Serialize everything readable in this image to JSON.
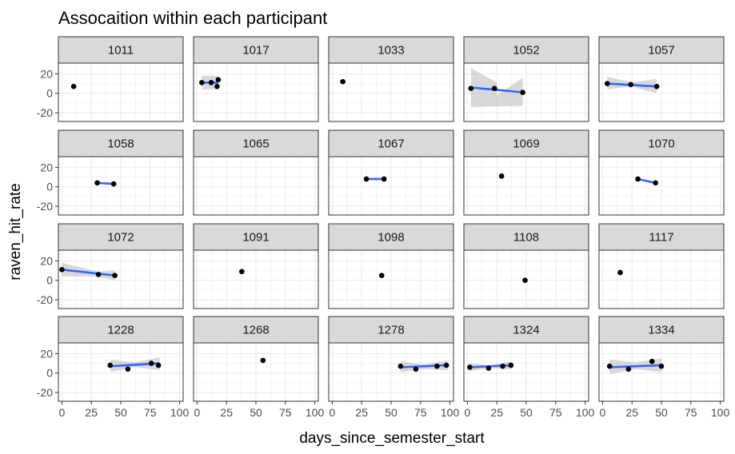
{
  "chart_data": {
    "type": "scatter",
    "title": "Assocaition within each participant",
    "xlabel": "days_since_semester_start",
    "ylabel": "raven_hit_rate",
    "xlim": [
      -3,
      103
    ],
    "ylim": [
      -29,
      31
    ],
    "x_ticks": [
      0,
      25,
      50,
      75,
      100
    ],
    "x_tick_labels": [
      "0",
      "25",
      "50",
      "75",
      "100"
    ],
    "y_ticks": [
      -20,
      0,
      20
    ],
    "y_tick_labels": [
      "-20",
      "0",
      "20"
    ],
    "grid": true,
    "facet_layout": "4 rows x 5 columns",
    "colors": {
      "panel_background": "#ffffff",
      "grid": "#ebebeb",
      "strip_fill": "#d9d9d9",
      "border": "#333333",
      "point": "#000000",
      "trend_line": "#3366ff",
      "ribbon": "#c0c0c0"
    },
    "facets": [
      {
        "label": "1011",
        "points": [
          [
            10,
            7
          ]
        ]
      },
      {
        "label": "1017",
        "points": [
          [
            4,
            11
          ],
          [
            12,
            11
          ],
          [
            17,
            7
          ],
          [
            18,
            14
          ]
        ],
        "trend": [
          [
            4,
            11
          ],
          [
            18,
            11
          ]
        ],
        "band": [
          [
            4,
            4,
            18
          ],
          [
            18,
            4,
            18
          ]
        ]
      },
      {
        "label": "1033",
        "points": [
          [
            9,
            12
          ]
        ]
      },
      {
        "label": "1052",
        "points": [
          [
            3,
            5
          ],
          [
            23,
            5
          ],
          [
            47,
            1
          ]
        ],
        "trend": [
          [
            3,
            6
          ],
          [
            47,
            1
          ]
        ],
        "band": [
          [
            3,
            -14
          ],
          [
            3,
            26
          ],
          [
            25,
            11
          ],
          [
            25,
            -2
          ],
          [
            47,
            16
          ],
          [
            47,
            -13
          ]
        ],
        "band_shape": "hourglass"
      },
      {
        "label": "1057",
        "points": [
          [
            4,
            10
          ],
          [
            24,
            9
          ],
          [
            46,
            7
          ]
        ],
        "trend": [
          [
            4,
            10
          ],
          [
            46,
            7
          ]
        ],
        "band": [
          [
            4,
            4,
            17
          ],
          [
            25,
            7,
            11
          ],
          [
            46,
            0,
            15
          ]
        ]
      },
      {
        "label": "1058",
        "points": [
          [
            30,
            4
          ],
          [
            44,
            3
          ]
        ],
        "trend": [
          [
            30,
            4
          ],
          [
            44,
            3
          ]
        ]
      },
      {
        "label": "1065",
        "points": []
      },
      {
        "label": "1067",
        "points": [
          [
            29,
            8
          ],
          [
            44,
            8
          ]
        ],
        "trend": [
          [
            29,
            8
          ],
          [
            44,
            8
          ]
        ]
      },
      {
        "label": "1069",
        "points": [
          [
            29,
            11
          ]
        ]
      },
      {
        "label": "1070",
        "points": [
          [
            30,
            8
          ],
          [
            45,
            4
          ]
        ],
        "trend": [
          [
            30,
            8
          ],
          [
            45,
            4
          ]
        ]
      },
      {
        "label": "1072",
        "points": [
          [
            0,
            11
          ],
          [
            31,
            6
          ],
          [
            45,
            5
          ]
        ],
        "trend": [
          [
            0,
            11
          ],
          [
            45,
            5
          ]
        ],
        "band": [
          [
            0,
            4,
            18
          ],
          [
            30,
            4,
            9
          ],
          [
            45,
            0,
            10
          ]
        ]
      },
      {
        "label": "1091",
        "points": [
          [
            38,
            9
          ]
        ]
      },
      {
        "label": "1098",
        "points": [
          [
            42,
            5
          ]
        ]
      },
      {
        "label": "1108",
        "points": [
          [
            49,
            0
          ]
        ]
      },
      {
        "label": "1117",
        "points": [
          [
            15,
            8
          ]
        ]
      },
      {
        "label": "1228",
        "points": [
          [
            41,
            8
          ],
          [
            56,
            4
          ],
          [
            76,
            10
          ],
          [
            82,
            8
          ]
        ],
        "trend": [
          [
            41,
            7
          ],
          [
            83,
            10
          ]
        ],
        "band": [
          [
            41,
            1,
            14
          ],
          [
            62,
            6,
            11
          ],
          [
            83,
            3,
            16
          ]
        ]
      },
      {
        "label": "1268",
        "points": [
          [
            56,
            13
          ]
        ]
      },
      {
        "label": "1278",
        "points": [
          [
            58,
            7
          ],
          [
            71,
            4
          ],
          [
            89,
            7
          ],
          [
            97,
            8
          ]
        ],
        "trend": [
          [
            58,
            6
          ],
          [
            98,
            8
          ]
        ],
        "band": [
          [
            58,
            1,
            12
          ],
          [
            78,
            4,
            9
          ],
          [
            98,
            3,
            13
          ]
        ]
      },
      {
        "label": "1324",
        "points": [
          [
            2,
            6
          ],
          [
            18,
            5
          ],
          [
            30,
            7
          ],
          [
            37,
            8
          ]
        ],
        "trend": [
          [
            2,
            6
          ],
          [
            37,
            8
          ]
        ],
        "band": [
          [
            2,
            2,
            10
          ],
          [
            20,
            5,
            8
          ],
          [
            37,
            4,
            12
          ]
        ]
      },
      {
        "label": "1334",
        "points": [
          [
            6,
            7
          ],
          [
            22,
            4
          ],
          [
            42,
            12
          ],
          [
            50,
            7
          ]
        ],
        "trend": [
          [
            6,
            6
          ],
          [
            50,
            8
          ]
        ],
        "band": [
          [
            6,
            -1,
            14
          ],
          [
            28,
            4,
            11
          ],
          [
            50,
            1,
            15
          ]
        ]
      }
    ]
  }
}
